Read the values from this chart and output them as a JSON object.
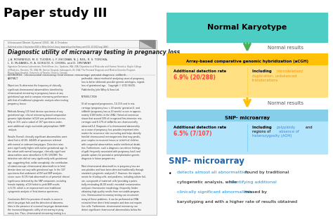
{
  "title": "Paper study III",
  "paper_title": "Diagnostic utility of microarray testing in pregnancy loss",
  "paper_authors": "J. A. ROSENFELD, M. E. TUCKER, L. F. ESCOBAR, N. J. NEIL, R. S. TORCHIA,\nL. D. McDANIEL, R. A. SCHULTZ, K. CHONG, and D. ORETAYAT",
  "paper_affiliations": "Signature Genomics Laboratories, PerkinElmer, Inc., Spokane, WA, USA; Department of Molecular and Human Genetics, Baylor College\nof Medicine, Houston, TX, USA; Mt. Vernon Hospital, Indianapolis, IN, USA; The Prenatal Diagnosis and Medical Genetics Program,\nMount Sinai Hospital, University of Toronto, Ontario, Canada.",
  "box1_color": "#4ECDC4",
  "box1_text": "Normal Karyotype",
  "arrow1_color": "#4CAF50",
  "arrow1_label": "Normal results",
  "box2_color": "#FFC107",
  "box2_header": "Array-based comparative genomic hybridization (aCGH)",
  "box2_left_bold": "Additional detection rate",
  "box2_left_rate": "6.9% (20/288)",
  "box2_rate_color": "#FF4444",
  "box2_right_bold": "Including ",
  "box2_highlight_color": "#FF8C00",
  "arrow2_color": "#FFC107",
  "arrow2_label": "Normal results",
  "box3_color": "#87CEEB",
  "box3_header": "SNP- microarray",
  "box3_left_bold": "Additional detection rate",
  "box3_left_rate": "6.5% (7/107)",
  "box3_rate_color": "#FF4444",
  "box3_highlight_color": "#4488CC",
  "snp_title": "SNP- microarray",
  "snp_title_color": "#2266AA",
  "bg_color": "#FFFFFF"
}
